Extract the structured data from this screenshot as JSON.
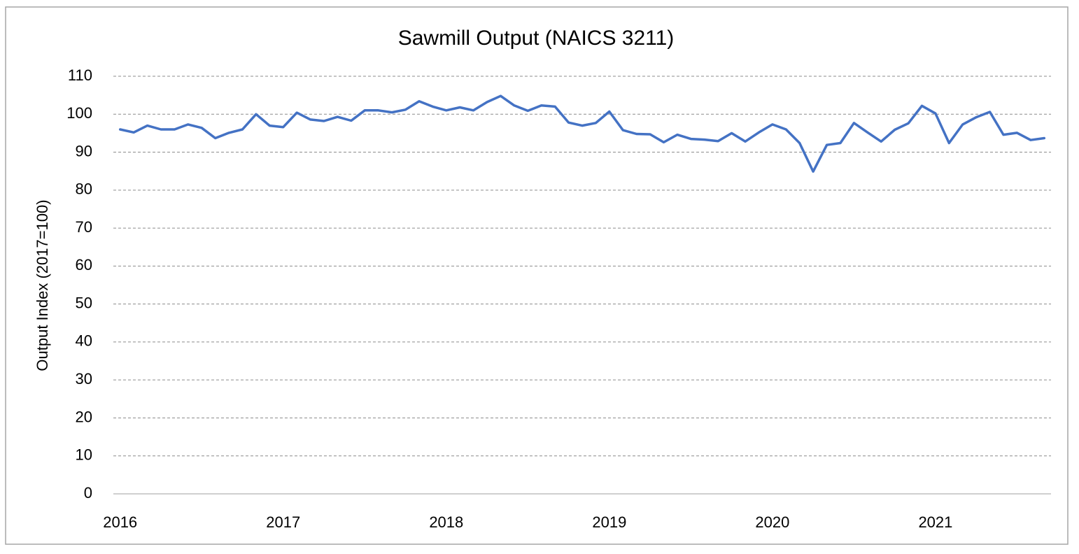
{
  "chart_data": {
    "type": "line",
    "title": "Sawmill Output (NAICS 3211)",
    "y_label": "Output Index (2017=100)",
    "categories": [
      "2016",
      null,
      null,
      null,
      null,
      null,
      null,
      null,
      null,
      null,
      null,
      null,
      "2017",
      null,
      null,
      null,
      null,
      null,
      null,
      null,
      null,
      null,
      null,
      null,
      "2018",
      null,
      null,
      null,
      null,
      null,
      null,
      null,
      null,
      null,
      null,
      null,
      "2019",
      null,
      null,
      null,
      null,
      null,
      null,
      null,
      null,
      null,
      null,
      null,
      "2020",
      null,
      null,
      null,
      null,
      null,
      null,
      null,
      null,
      null,
      null,
      null,
      "2021",
      null,
      null,
      null,
      null,
      null,
      null,
      null,
      null
    ],
    "series": [
      {
        "name": "Sawmill Output",
        "color": "#4472c4",
        "values": [
          96,
          95.2,
          97,
          96,
          96,
          97.3,
          96.4,
          93.7,
          95.1,
          96,
          100,
          97,
          96.6,
          100.4,
          98.6,
          98.2,
          99.3,
          98.3,
          101,
          101,
          100.5,
          101.2,
          103.4,
          102,
          101,
          101.8,
          101,
          103.2,
          104.8,
          102.3,
          100.9,
          102.3,
          102,
          97.8,
          97,
          97.7,
          100.7,
          95.8,
          94.8,
          94.7,
          92.6,
          94.6,
          93.5,
          93.3,
          92.9,
          95,
          92.8,
          95.2,
          97.3,
          96,
          92.4,
          84.9,
          91.9,
          92.4,
          97.7,
          95.2,
          92.8,
          95.9,
          97.6,
          102.2,
          100.2,
          92.4,
          97.3,
          99.2,
          100.6,
          94.6,
          95.1,
          93.2,
          93.7
        ]
      }
    ],
    "ylim": [
      0,
      110
    ],
    "yticks": [
      0,
      10,
      20,
      30,
      40,
      50,
      60,
      70,
      80,
      90,
      100,
      110
    ],
    "grid": true
  }
}
